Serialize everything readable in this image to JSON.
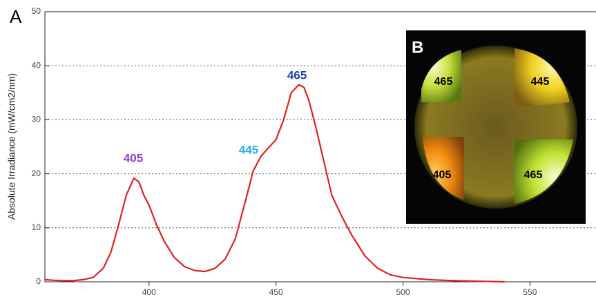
{
  "chart_data": {
    "type": "line",
    "panel_label": "A",
    "y_label": "Absolute Irradiance (mW/cm2/nm)",
    "x": [
      359,
      362,
      366,
      370,
      374,
      378,
      382,
      385,
      388,
      391,
      394,
      396,
      398,
      400,
      403,
      406,
      410,
      414,
      418,
      422,
      426,
      430,
      434,
      438,
      441,
      444,
      447,
      450,
      453,
      456,
      459,
      461,
      463,
      466,
      469,
      472,
      476,
      480,
      485,
      490,
      495,
      500,
      510,
      520,
      530,
      540
    ],
    "series": [
      {
        "color": "#e02020",
        "values": [
          0.4,
          0.3,
          0.2,
          0.2,
          0.4,
          0.8,
          2.5,
          5.5,
          10.5,
          16,
          19.2,
          18.5,
          16,
          14.2,
          10.5,
          7.5,
          4.5,
          2.8,
          2.1,
          1.9,
          2.5,
          4.2,
          8,
          15,
          20.5,
          23.2,
          24.8,
          26.3,
          30,
          35,
          36.5,
          36,
          33.5,
          28,
          22,
          16,
          12,
          8.5,
          4.8,
          2.5,
          1.3,
          0.8,
          0.4,
          0.2,
          0.1,
          0
        ]
      }
    ],
    "xlim": [
      359,
      576
    ],
    "xticks": [
      400,
      450,
      500,
      550
    ],
    "ylim": [
      0,
      50
    ],
    "yticks": [
      0,
      10,
      20,
      30,
      40,
      50
    ],
    "grid": true,
    "annotations": [
      {
        "text": "405",
        "color": "#8b3fd0"
      },
      {
        "text": "445",
        "color": "#2aaeea"
      },
      {
        "text": "465",
        "color": "#1a3fb0"
      }
    ],
    "inset": {
      "panel_label": "B",
      "labels": [
        "465",
        "445",
        "405",
        "465"
      ]
    }
  }
}
